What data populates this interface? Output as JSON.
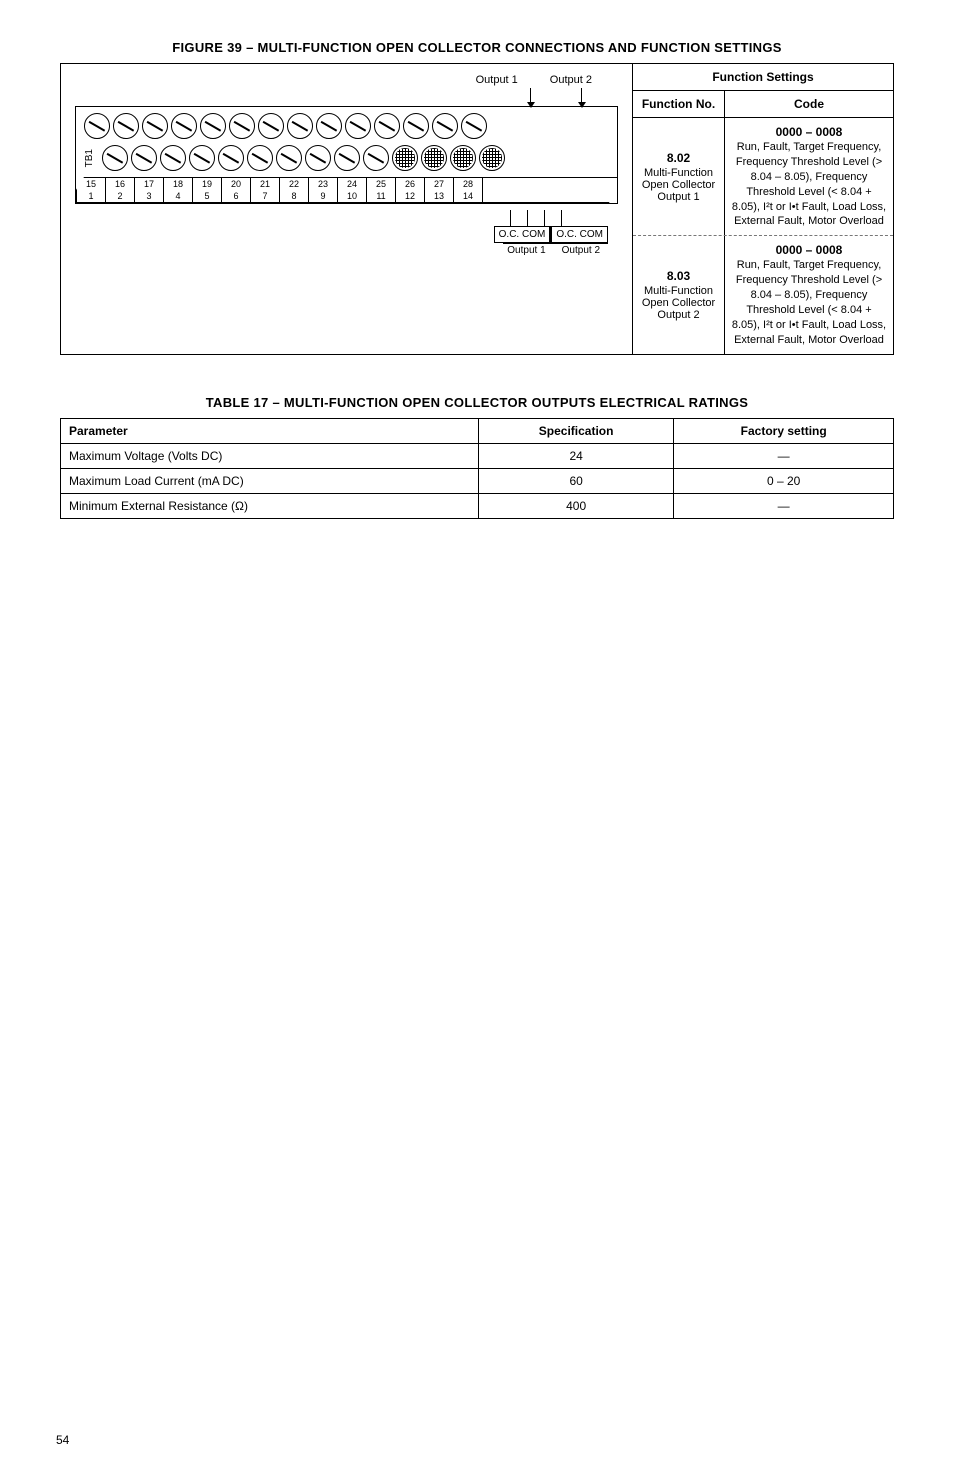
{
  "figure": {
    "title": "FIGURE 39 – MULTI-FUNCTION OPEN COLLECTOR CONNECTIONS AND FUNCTION SETTINGS",
    "outputs_top": {
      "out1": "Output 1",
      "out2": "Output 2"
    },
    "tb_label": "TB1",
    "num_upper": [
      "15",
      "16",
      "17",
      "18",
      "19",
      "20",
      "21",
      "22",
      "23",
      "24",
      "25",
      "26",
      "27",
      "28"
    ],
    "num_lower": [
      "1",
      "2",
      "3",
      "4",
      "5",
      "6",
      "7",
      "8",
      "9",
      "10",
      "11",
      "12",
      "13",
      "14"
    ],
    "oc": {
      "box1": "O.C.  COM",
      "box2": "O.C.  COM",
      "under1": "Output 1",
      "under2": "Output 2"
    },
    "settings": {
      "header": "Function Settings",
      "fn_head": "Function No.",
      "code_head": "Code",
      "rows": [
        {
          "fn_num": "8.02",
          "fn_desc": "Multi-Function Open Collector Output 1",
          "code_head": "0000 – 0008",
          "code_body": "Run, Fault, Target Frequency, Frequency Threshold Level (> 8.04 – 8.05), Frequency Threshold Level (< 8.04 + 8.05), I²t or I•t Fault, Load Loss, External Fault, Motor Overload"
        },
        {
          "fn_num": "8.03",
          "fn_desc": "Multi-Function Open Collector Output 2",
          "code_head": "0000 – 0008",
          "code_body": "Run, Fault, Target Frequency, Frequency Threshold Level (> 8.04 – 8.05), Frequency Threshold Level (< 8.04 + 8.05), I²t or I•t Fault, Load Loss, External Fault, Motor Overload"
        }
      ]
    }
  },
  "table17": {
    "title": "TABLE 17 – MULTI-FUNCTION OPEN COLLECTOR OUTPUTS ELECTRICAL RATINGS",
    "headers": {
      "param": "Parameter",
      "spec": "Specification",
      "factory": "Factory setting"
    },
    "rows": [
      {
        "param": "Maximum Voltage (Volts DC)",
        "spec": "24",
        "factory": "—"
      },
      {
        "param": "Maximum Load Current (mA DC)",
        "spec": "60",
        "factory": "0 – 20"
      },
      {
        "param": "Minimum External Resistance (Ω)",
        "spec": "400",
        "factory": "—"
      }
    ]
  },
  "page_number": "54"
}
